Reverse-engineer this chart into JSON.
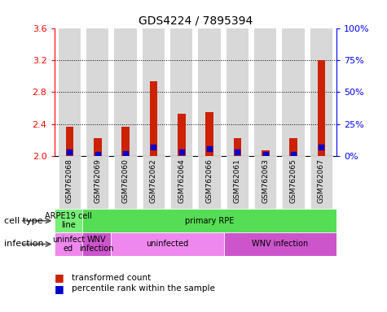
{
  "title": "GDS4224 / 7895394",
  "samples": [
    "GSM762068",
    "GSM762069",
    "GSM762060",
    "GSM762062",
    "GSM762064",
    "GSM762066",
    "GSM762061",
    "GSM762063",
    "GSM762065",
    "GSM762067"
  ],
  "red_values": [
    2.37,
    2.22,
    2.37,
    2.93,
    2.53,
    2.55,
    2.22,
    2.07,
    2.22,
    3.2
  ],
  "blue_values": [
    3,
    1,
    2,
    7,
    3,
    6,
    3,
    1,
    1,
    7
  ],
  "ylim_left": [
    2.0,
    3.6
  ],
  "ylim_right": [
    0,
    100
  ],
  "yticks_left": [
    2.0,
    2.4,
    2.8,
    3.2,
    3.6
  ],
  "yticks_right": [
    0,
    25,
    50,
    75,
    100
  ],
  "ytick_labels_right": [
    "0%",
    "25%",
    "50%",
    "75%",
    "100%"
  ],
  "red_color": "#cc2200",
  "blue_color": "#0000cc",
  "bar_bg_color": "#d8d8d8",
  "cell_colors": [
    "#77ee77",
    "#55dd55"
  ],
  "cell_labels": [
    "ARPE19 cell\nline",
    "primary RPE"
  ],
  "cell_spans": [
    1,
    9
  ],
  "inf_colors": [
    "#ee88ee",
    "#cc55cc",
    "#ee88ee",
    "#cc55cc"
  ],
  "inf_labels": [
    "uninfect\ned",
    "WNV\ninfection",
    "uninfected",
    "WNV infection"
  ],
  "inf_spans": [
    1,
    1,
    4,
    4
  ],
  "legend_red": "transformed count",
  "legend_blue": "percentile rank within the sample"
}
